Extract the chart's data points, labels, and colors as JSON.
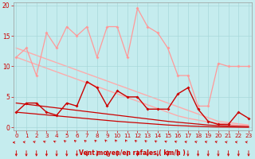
{
  "bg_color": "#c5ecee",
  "grid_color": "#a8d8da",
  "xlabel": "Vent moyen/en rafales ( km/h )",
  "xlabel_color": "#cc0000",
  "tick_color": "#cc0000",
  "ylim": [
    -0.5,
    20.5
  ],
  "xlim": [
    -0.3,
    23.3
  ],
  "yticks": [
    0,
    5,
    10,
    15,
    20
  ],
  "xticks": [
    0,
    1,
    2,
    3,
    4,
    5,
    6,
    7,
    8,
    9,
    10,
    11,
    12,
    13,
    14,
    15,
    16,
    17,
    18,
    19,
    20,
    21,
    22,
    23
  ],
  "series": [
    {
      "y": [
        11.5,
        13.0,
        8.5,
        15.5,
        13.0,
        16.5,
        15.0,
        16.5,
        11.5,
        16.5,
        16.5,
        11.5,
        19.5,
        16.5,
        15.5,
        13.0,
        8.5,
        8.5,
        3.5,
        3.5,
        10.5,
        10.0,
        10.0,
        10.0
      ],
      "color": "#ff9999",
      "lw": 0.9,
      "marker": "D",
      "ms": 2.0,
      "zorder": 3
    },
    {
      "y": [
        2.5,
        4.0,
        4.0,
        2.5,
        2.0,
        4.0,
        3.5,
        7.5,
        6.5,
        3.5,
        6.0,
        5.0,
        5.0,
        3.0,
        3.0,
        3.0,
        5.5,
        6.5,
        3.0,
        1.0,
        0.5,
        0.5,
        2.5,
        1.5
      ],
      "color": "#cc0000",
      "lw": 1.0,
      "marker": "D",
      "ms": 2.0,
      "zorder": 5
    },
    {
      "y": [
        13.0,
        12.4,
        11.8,
        11.2,
        10.6,
        10.0,
        9.4,
        8.8,
        8.2,
        7.6,
        7.0,
        6.4,
        5.8,
        5.2,
        4.6,
        4.0,
        3.4,
        2.8,
        2.2,
        1.6,
        1.0,
        0.8,
        0.6,
        0.4
      ],
      "color": "#ffaaaa",
      "lw": 1.0,
      "marker": null,
      "zorder": 1
    },
    {
      "y": [
        11.5,
        10.9,
        10.3,
        9.7,
        9.1,
        8.5,
        7.9,
        7.3,
        6.7,
        6.1,
        5.5,
        4.9,
        4.3,
        3.7,
        3.1,
        2.5,
        1.9,
        1.5,
        1.2,
        0.9,
        0.7,
        0.5,
        0.4,
        0.3
      ],
      "color": "#ffaaaa",
      "lw": 1.0,
      "marker": null,
      "zorder": 1
    },
    {
      "y": [
        4.0,
        3.8,
        3.6,
        3.4,
        3.2,
        3.0,
        2.8,
        2.6,
        2.4,
        2.2,
        2.0,
        1.8,
        1.6,
        1.4,
        1.2,
        1.0,
        0.85,
        0.7,
        0.55,
        0.4,
        0.3,
        0.25,
        0.2,
        0.15
      ],
      "color": "#cc0000",
      "lw": 0.9,
      "marker": null,
      "zorder": 2
    },
    {
      "y": [
        2.5,
        2.35,
        2.2,
        2.05,
        1.9,
        1.75,
        1.6,
        1.45,
        1.3,
        1.15,
        1.0,
        0.88,
        0.76,
        0.64,
        0.52,
        0.4,
        0.32,
        0.24,
        0.18,
        0.12,
        0.08,
        0.06,
        0.04,
        0.03
      ],
      "color": "#cc0000",
      "lw": 0.9,
      "marker": null,
      "zorder": 2
    }
  ],
  "arrow_angles_deg": [
    90,
    80,
    75,
    70,
    65,
    55,
    50,
    50,
    45,
    40,
    40,
    40,
    50,
    55,
    60,
    65,
    70,
    75,
    75,
    75,
    75,
    80,
    80,
    80
  ],
  "arrow_color": "#cc0000"
}
